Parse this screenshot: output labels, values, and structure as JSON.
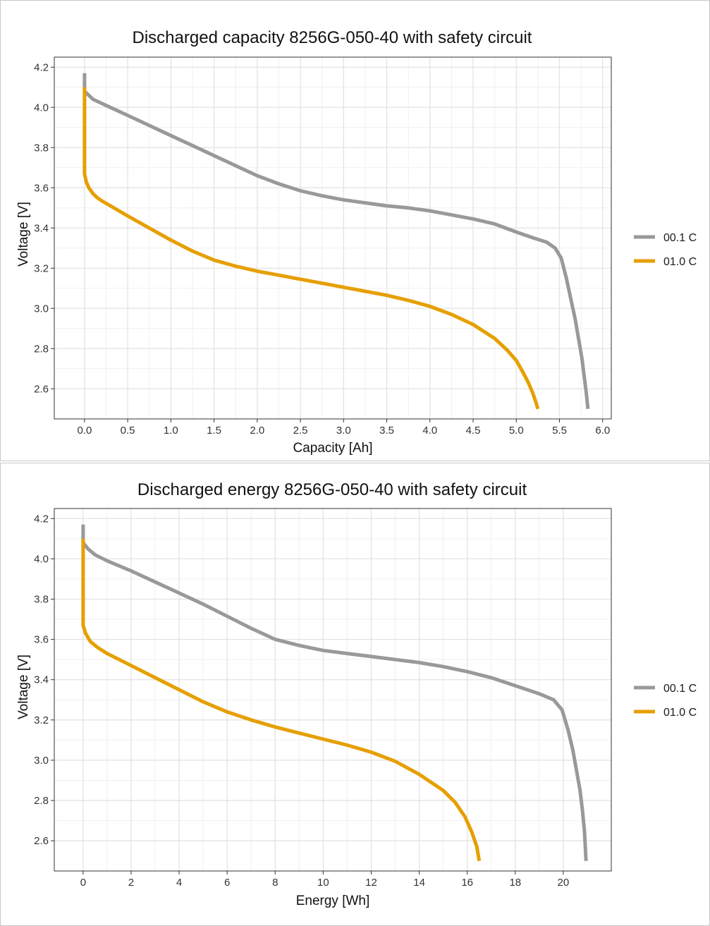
{
  "colors": {
    "series_0.1C": "#999999",
    "series_1.0C": "#E69F00"
  },
  "chart_data": [
    {
      "type": "line",
      "title": "Discharged capacity 8256G-050-40 with safety circuit",
      "xlabel": "Capacity [Ah]",
      "ylabel": "Voltage [V]",
      "xlim": [
        -0.35,
        6.1
      ],
      "ylim": [
        2.45,
        4.25
      ],
      "xticks": [
        "0.0",
        "0.5",
        "1.0",
        "1.5",
        "2.0",
        "2.5",
        "3.0",
        "3.5",
        "4.0",
        "4.5",
        "5.0",
        "5.5",
        "6.0"
      ],
      "xtick_values": [
        0,
        0.5,
        1,
        1.5,
        2,
        2.5,
        3,
        3.5,
        4,
        4.5,
        5,
        5.5,
        6
      ],
      "yticks": [
        "2.6",
        "2.8",
        "3.0",
        "3.2",
        "3.4",
        "3.6",
        "3.8",
        "4.0",
        "4.2"
      ],
      "ytick_values": [
        2.6,
        2.8,
        3.0,
        3.2,
        3.4,
        3.6,
        3.8,
        4.0,
        4.2
      ],
      "grid": true,
      "legend_position": "right",
      "series": [
        {
          "name": "00.1 C",
          "color": "#999999",
          "x": [
            0,
            0,
            0,
            0.05,
            0.1,
            0.2,
            0.3,
            0.5,
            0.75,
            1.0,
            1.25,
            1.5,
            1.75,
            2.0,
            2.25,
            2.5,
            2.75,
            3.0,
            3.25,
            3.5,
            3.75,
            4.0,
            4.25,
            4.5,
            4.75,
            5.0,
            5.2,
            5.35,
            5.45,
            5.52,
            5.58,
            5.63,
            5.68,
            5.72,
            5.76,
            5.79,
            5.81,
            5.83
          ],
          "y": [
            4.17,
            4.1,
            4.08,
            4.06,
            4.04,
            4.02,
            4.0,
            3.96,
            3.91,
            3.86,
            3.81,
            3.76,
            3.71,
            3.66,
            3.62,
            3.585,
            3.56,
            3.54,
            3.525,
            3.51,
            3.5,
            3.485,
            3.465,
            3.445,
            3.42,
            3.38,
            3.35,
            3.33,
            3.3,
            3.25,
            3.15,
            3.05,
            2.95,
            2.85,
            2.75,
            2.65,
            2.58,
            2.5
          ]
        },
        {
          "name": "01.0 C",
          "color": "#E69F00",
          "x": [
            0,
            0,
            0,
            0.02,
            0.05,
            0.1,
            0.15,
            0.2,
            0.3,
            0.5,
            0.75,
            1.0,
            1.25,
            1.5,
            1.75,
            2.0,
            2.25,
            2.5,
            2.75,
            3.0,
            3.25,
            3.5,
            3.75,
            4.0,
            4.25,
            4.5,
            4.75,
            4.9,
            5.0,
            5.08,
            5.14,
            5.19,
            5.23,
            5.25
          ],
          "y": [
            4.1,
            3.9,
            3.67,
            3.63,
            3.6,
            3.57,
            3.55,
            3.535,
            3.51,
            3.46,
            3.4,
            3.34,
            3.285,
            3.24,
            3.21,
            3.185,
            3.165,
            3.145,
            3.125,
            3.105,
            3.085,
            3.065,
            3.04,
            3.01,
            2.97,
            2.92,
            2.85,
            2.79,
            2.74,
            2.68,
            2.63,
            2.58,
            2.53,
            2.5
          ]
        }
      ]
    },
    {
      "type": "line",
      "title": "Discharged energy 8256G-050-40 with safety circuit",
      "xlabel": "Energy [Wh]",
      "ylabel": "Voltage [V]",
      "xlim": [
        -1.2,
        22.0
      ],
      "ylim": [
        2.45,
        4.25
      ],
      "xticks": [
        "0",
        "2",
        "4",
        "6",
        "8",
        "10",
        "12",
        "14",
        "16",
        "18",
        "20"
      ],
      "xtick_values": [
        0,
        2,
        4,
        6,
        8,
        10,
        12,
        14,
        16,
        18,
        20
      ],
      "yticks": [
        "2.6",
        "2.8",
        "3.0",
        "3.2",
        "3.4",
        "3.6",
        "3.8",
        "4.0",
        "4.2"
      ],
      "ytick_values": [
        2.6,
        2.8,
        3.0,
        3.2,
        3.4,
        3.6,
        3.8,
        4.0,
        4.2
      ],
      "grid": true,
      "legend_position": "right",
      "series": [
        {
          "name": "00.1 C",
          "color": "#999999",
          "x": [
            0,
            0,
            0,
            0.2,
            0.5,
            1,
            2,
            3,
            4,
            5,
            6,
            7,
            8,
            9,
            10,
            11,
            12,
            13,
            14,
            15,
            16,
            17,
            18,
            19,
            19.6,
            19.95,
            20.2,
            20.4,
            20.55,
            20.7,
            20.8,
            20.88,
            20.95
          ],
          "y": [
            4.17,
            4.1,
            4.08,
            4.05,
            4.02,
            3.99,
            3.94,
            3.885,
            3.83,
            3.775,
            3.715,
            3.655,
            3.6,
            3.57,
            3.545,
            3.53,
            3.515,
            3.5,
            3.485,
            3.465,
            3.44,
            3.41,
            3.37,
            3.33,
            3.3,
            3.25,
            3.15,
            3.05,
            2.95,
            2.85,
            2.75,
            2.65,
            2.5
          ]
        },
        {
          "name": "01.0 C",
          "color": "#E69F00",
          "x": [
            0,
            0,
            0,
            0.1,
            0.3,
            0.6,
            1,
            2,
            3,
            4,
            5,
            6,
            7,
            8,
            9,
            10,
            11,
            12,
            13,
            14,
            15,
            15.5,
            15.9,
            16.2,
            16.4,
            16.5
          ],
          "y": [
            4.1,
            3.9,
            3.67,
            3.63,
            3.59,
            3.56,
            3.53,
            3.47,
            3.41,
            3.35,
            3.29,
            3.24,
            3.2,
            3.165,
            3.135,
            3.105,
            3.075,
            3.04,
            2.995,
            2.93,
            2.85,
            2.79,
            2.72,
            2.64,
            2.57,
            2.5
          ]
        }
      ]
    }
  ]
}
